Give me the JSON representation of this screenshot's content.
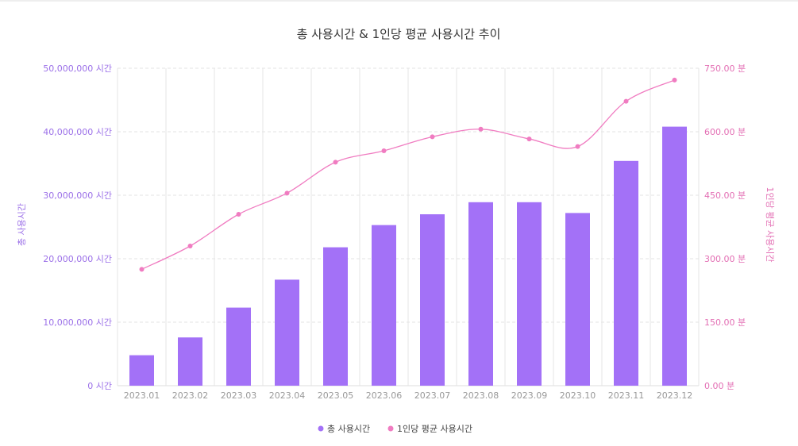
{
  "chart_data": {
    "type": "bar",
    "title": "총 사용시간 & 1인당 평균 사용시간 추이",
    "categories": [
      "2023.01",
      "2023.02",
      "2023.03",
      "2023.04",
      "2023.05",
      "2023.06",
      "2023.07",
      "2023.08",
      "2023.09",
      "2023.10",
      "2023.11",
      "2023.12"
    ],
    "series": [
      {
        "name": "총 사용시간",
        "type": "bar",
        "axis": "left",
        "color": "#a371f7",
        "values": [
          4800000,
          7600000,
          12300000,
          16700000,
          21800000,
          25300000,
          27000000,
          28900000,
          28900000,
          27200000,
          35400000,
          40800000
        ]
      },
      {
        "name": "1인당 평균 사용시간",
        "type": "line",
        "axis": "right",
        "color": "#f07cc1",
        "values": [
          275,
          330,
          405,
          455,
          528,
          555,
          588,
          606,
          583,
          565,
          672,
          722
        ]
      }
    ],
    "ylabel": "총 사용시간",
    "ylabel_right": "1인당 평균 사용시간",
    "ylim": [
      0,
      50000000
    ],
    "ylim_right": [
      0,
      750
    ],
    "yticks": [
      "0 시간",
      "10,000,000 시간",
      "20,000,000 시간",
      "30,000,000 시간",
      "40,000,000 시간",
      "50,000,000 시간"
    ],
    "yticks_right": [
      "0.00 분",
      "150.00 분",
      "300.00 분",
      "450.00 분",
      "600.00 분",
      "750.00 분"
    ],
    "grid": true,
    "legend_position": "bottom-center"
  }
}
